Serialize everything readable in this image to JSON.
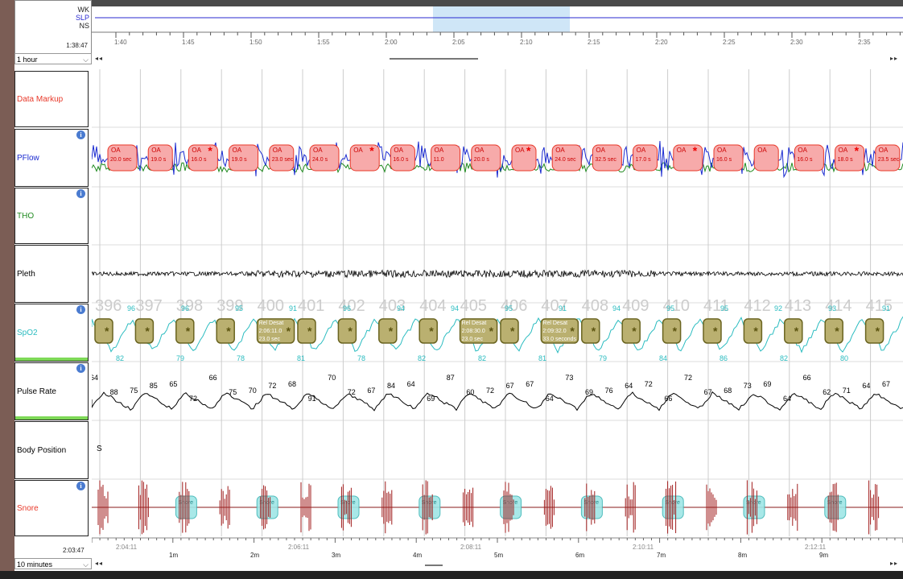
{
  "hypnogram": {
    "stages": [
      "WK",
      "SLP",
      "NS"
    ],
    "start_time": "1:38:47",
    "ticks": [
      "1:40",
      "1:45",
      "1:50",
      "1:55",
      "2:00",
      "2:05",
      "2:10",
      "2:15",
      "2:20",
      "2:25",
      "2:30",
      "2:35"
    ]
  },
  "top_window": {
    "value": "1 hour",
    "nav_left": "◂◂",
    "nav_right": "▸▸"
  },
  "channels": [
    "Data Markup",
    "PFlow",
    "THO",
    "Pleth",
    "SpO2",
    "Pulse Rate",
    "Body Position",
    "Snore"
  ],
  "colors": {
    "data_markup": "#e8392a",
    "pflow": "#1a2ad0",
    "tho": "#1f8a1f",
    "pleth": "#000000",
    "spo2": "#2bbcc0",
    "pulse": "#000000",
    "snore": "#e8392a",
    "oa_fill": "#f7aaaa",
    "desat_fill": "#bab070",
    "snore_fill": "#9fe6e6"
  },
  "oa_events": [
    {
      "label": "OA",
      "dur": "20.0 sec"
    },
    {
      "label": "OA",
      "dur": "19.0 s"
    },
    {
      "label": "OA",
      "dur": "16.0 s"
    },
    {
      "label": "OA",
      "dur": "19.0 s"
    },
    {
      "label": "OA",
      "dur": "23.0 sec"
    },
    {
      "label": "OA",
      "dur": "24.0 s"
    },
    {
      "label": "OA",
      "dur": ""
    },
    {
      "label": "OA",
      "dur": "16.0 s"
    },
    {
      "label": "OA",
      "dur": "11.0"
    },
    {
      "label": "OA",
      "dur": "20.0 s"
    },
    {
      "label": "OA",
      "dur": ""
    },
    {
      "label": "OA",
      "dur": "24.0 sec"
    },
    {
      "label": "OA",
      "dur": "32.5 sec"
    },
    {
      "label": "OA",
      "dur": "17.0 s"
    },
    {
      "label": "OA",
      "dur": ""
    },
    {
      "label": "OA",
      "dur": "16.0 s"
    },
    {
      "label": "OA",
      "dur": ""
    },
    {
      "label": "OA",
      "dur": "16.0 s"
    },
    {
      "label": "OA",
      "dur": "18.0 s"
    },
    {
      "label": "OA",
      "dur": "23.5 sec"
    }
  ],
  "epochs": [
    "396",
    "397",
    "398",
    "399",
    "400",
    "401",
    "402",
    "403",
    "404",
    "405",
    "406",
    "407",
    "408",
    "409",
    "410",
    "411",
    "412",
    "413",
    "414",
    "415"
  ],
  "spo2_values": [
    "96",
    "96",
    "95",
    "91",
    "96",
    "94",
    "94",
    "95",
    "91",
    "94",
    "95",
    "95",
    "92",
    "93",
    "91"
  ],
  "spo2_lows": [
    "82",
    "79",
    "78",
    "81",
    "78",
    "82",
    "82",
    "81",
    "79",
    "84",
    "86",
    "82",
    "80"
  ],
  "desat_events": [
    {
      "label": "Rel Desat",
      "time": "2:06:11.0",
      "dur": "23.0 sec"
    },
    {
      "label": "Rel Desat",
      "time": "2:08:30.0",
      "dur": "23.0 sec"
    },
    {
      "label": "Rel Desat",
      "time": "2:09:32.0",
      "dur": "33.0 seconds"
    }
  ],
  "pulse_values": [
    "64",
    "88",
    "75",
    "85",
    "65",
    "72",
    "66",
    "75",
    "70",
    "72",
    "68",
    "91",
    "70",
    "72",
    "67",
    "84",
    "64",
    "69",
    "87",
    "60",
    "72",
    "67",
    "67",
    "64",
    "73",
    "69",
    "76",
    "64",
    "72",
    "66",
    "72",
    "67",
    "68",
    "73",
    "69",
    "64",
    "66",
    "62",
    "71",
    "64",
    "67"
  ],
  "body_position": "S",
  "bottom_axis": {
    "end_time": "2:03:47",
    "clock_ticks": [
      "2:04:11",
      "2:06:11",
      "2:08:11",
      "2:10:11",
      "2:12:11"
    ],
    "minute_ticks": [
      "1m",
      "2m",
      "3m",
      "4m",
      "5m",
      "6m",
      "7m",
      "8m",
      "9m"
    ]
  },
  "bottom_window": {
    "value": "10 minutes",
    "nav_left": "◂◂",
    "nav_right": "▸▸"
  },
  "snore_label": "Snore"
}
